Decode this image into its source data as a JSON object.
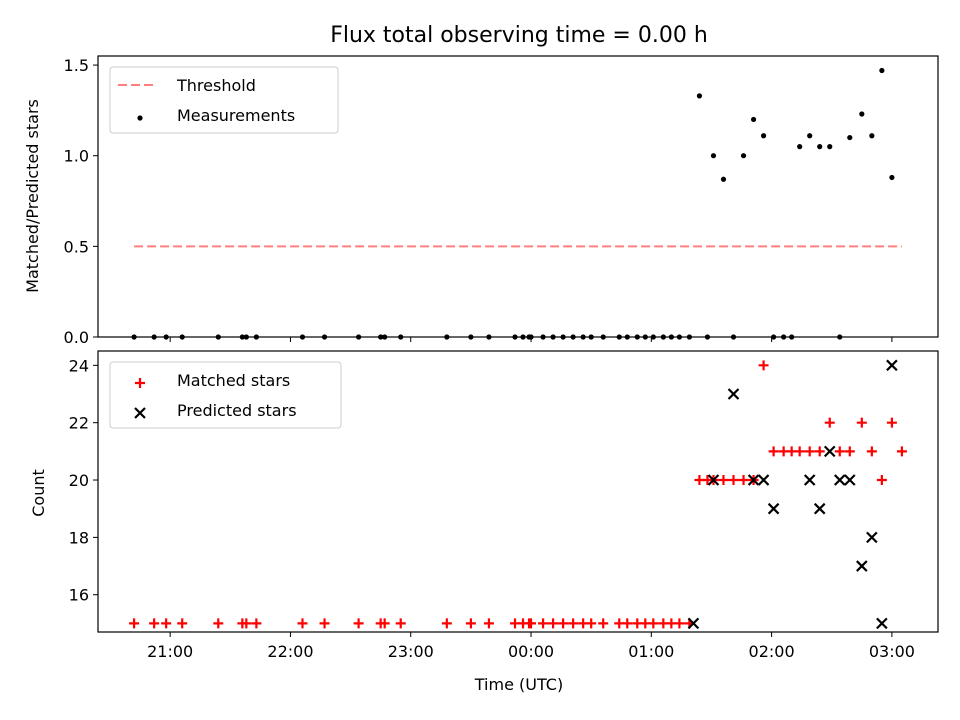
{
  "chart_data": [
    {
      "type": "scatter",
      "title": "Flux total observing time = 0.00 h",
      "xlabel": "",
      "ylabel": "Matched/Predicted stars",
      "ylim": [
        0.0,
        1.55
      ],
      "yticks": [
        "0.0",
        "0.5",
        "1.0",
        "1.5"
      ],
      "legend": "upper-left",
      "series": [
        {
          "name": "Threshold",
          "kind": "dashed-line",
          "color": "#ff7f7f",
          "x": [
            "20:42",
            "03:05"
          ],
          "y": [
            0.5,
            0.5
          ]
        },
        {
          "name": "Measurements",
          "kind": "points",
          "color": "#000000",
          "x": [
            "20:42",
            "20:52",
            "20:58",
            "21:06",
            "21:24",
            "21:36",
            "21:38",
            "21:43",
            "22:06",
            "22:17",
            "22:34",
            "22:45",
            "22:47",
            "22:55",
            "23:18",
            "23:30",
            "23:39",
            "23:52",
            "23:56",
            "23:59",
            "00:00",
            "00:06",
            "00:11",
            "00:16",
            "00:21",
            "00:26",
            "00:30",
            "00:36",
            "00:44",
            "00:48",
            "00:53",
            "00:57",
            "01:01",
            "01:06",
            "01:10",
            "01:14",
            "01:19",
            "01:24",
            "01:28",
            "01:31",
            "01:36",
            "01:41",
            "01:46",
            "01:51",
            "01:56",
            "02:01",
            "02:06",
            "02:10",
            "02:14",
            "02:19",
            "02:24",
            "02:29",
            "02:34",
            "02:39",
            "02:45",
            "02:50",
            "02:55",
            "03:00",
            "03:05"
          ],
          "y": [
            0,
            0,
            0,
            0,
            0,
            0,
            0,
            0,
            0,
            0,
            0,
            0,
            0,
            0,
            0,
            0,
            0,
            0,
            0,
            0,
            0,
            0,
            0,
            0,
            0,
            0,
            0,
            0,
            0,
            0,
            0,
            0,
            0,
            0,
            0,
            0,
            0,
            1.33,
            0,
            1.0,
            0.87,
            0,
            1.0,
            1.2,
            1.11,
            0,
            0,
            0,
            1.05,
            1.11,
            1.05,
            1.05,
            0,
            1.1,
            1.23,
            1.11,
            1.47,
            0.88,
            null
          ]
        }
      ]
    },
    {
      "type": "scatter",
      "title": "",
      "xlabel": "Time (UTC)",
      "ylabel": "Count",
      "ylim": [
        14.7,
        24.5
      ],
      "yticks": [
        "16",
        "18",
        "20",
        "22",
        "24"
      ],
      "xticks": [
        "21:00",
        "22:00",
        "23:00",
        "00:00",
        "01:00",
        "02:00",
        "03:00"
      ],
      "legend": "upper-left",
      "series": [
        {
          "name": "Matched stars",
          "marker": "+",
          "color": "#ff0000",
          "x": [
            "20:42",
            "20:52",
            "20:58",
            "21:06",
            "21:24",
            "21:36",
            "21:38",
            "21:43",
            "22:06",
            "22:17",
            "22:34",
            "22:45",
            "22:47",
            "22:55",
            "23:18",
            "23:30",
            "23:39",
            "23:52",
            "23:56",
            "23:59",
            "00:00",
            "00:06",
            "00:11",
            "00:16",
            "00:21",
            "00:26",
            "00:30",
            "00:36",
            "00:44",
            "00:48",
            "00:53",
            "00:57",
            "01:01",
            "01:06",
            "01:10",
            "01:14",
            "01:19",
            "01:24",
            "01:28",
            "01:31",
            "01:36",
            "01:41",
            "01:46",
            "01:51",
            "01:56",
            "02:01",
            "02:06",
            "02:10",
            "02:14",
            "02:19",
            "02:24",
            "02:29",
            "02:34",
            "02:39",
            "02:45",
            "02:50",
            "02:55",
            "03:00",
            "03:05"
          ],
          "y": [
            15,
            15,
            15,
            15,
            15,
            15,
            15,
            15,
            15,
            15,
            15,
            15,
            15,
            15,
            15,
            15,
            15,
            15,
            15,
            15,
            15,
            15,
            15,
            15,
            15,
            15,
            15,
            15,
            15,
            15,
            15,
            15,
            15,
            15,
            15,
            15,
            15,
            20,
            20,
            20,
            20,
            20,
            20,
            20,
            24,
            21,
            21,
            21,
            21,
            21,
            21,
            22,
            21,
            21,
            22,
            21,
            20,
            22,
            21
          ]
        },
        {
          "name": "Predicted stars",
          "marker": "x",
          "color": "#000000",
          "x": [
            "01:21",
            "01:31",
            "01:41",
            "01:51",
            "01:56",
            "02:01",
            "02:19",
            "02:24",
            "02:29",
            "02:34",
            "02:39",
            "02:45",
            "02:50",
            "02:55",
            "03:00",
            "03:05"
          ],
          "y": [
            15,
            20,
            23,
            20,
            20,
            19,
            20,
            19,
            21,
            20,
            20,
            17,
            18,
            15,
            24,
            null
          ]
        }
      ]
    }
  ]
}
